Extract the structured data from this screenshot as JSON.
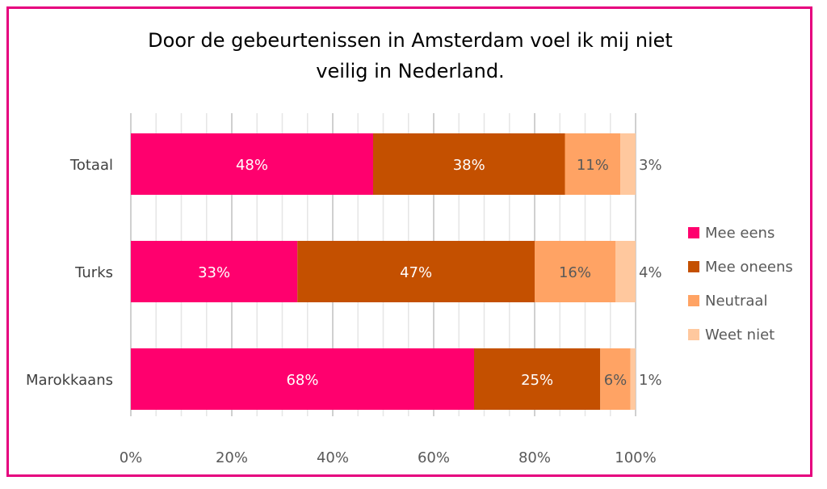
{
  "chart_data": {
    "type": "bar",
    "orientation": "horizontal",
    "stacked": true,
    "title": "Door de gebeurtenissen in Amsterdam voel ik mij niet veilig in Nederland.",
    "title_lines": [
      "Door de gebeurtenissen in Amsterdam voel ik mij niet",
      "veilig in Nederland."
    ],
    "categories": [
      "Totaal",
      "Turks",
      "Marokkaans"
    ],
    "series": [
      {
        "name": "Mee eens",
        "values": [
          48,
          33,
          68
        ],
        "labels": [
          "48%",
          "33%",
          "68%"
        ],
        "color": "#ff006e"
      },
      {
        "name": "Mee oneens",
        "values": [
          38,
          47,
          25
        ],
        "labels": [
          "38%",
          "47%",
          "25%"
        ],
        "color": "#c45000"
      },
      {
        "name": "Neutraal",
        "values": [
          11,
          16,
          6
        ],
        "labels": [
          "11%",
          "16%",
          "6%"
        ],
        "color": "#ffa364"
      },
      {
        "name": "Weet niet",
        "values": [
          3,
          4,
          1
        ],
        "labels": [
          "3%",
          "4%",
          "1%"
        ],
        "color": "#ffc89e"
      }
    ],
    "xlim": [
      0,
      100
    ],
    "xticks": [
      "0%",
      "20%",
      "40%",
      "60%",
      "80%",
      "100%"
    ],
    "grid": true,
    "legend_position": "right",
    "frame_color": "#e6007e"
  }
}
